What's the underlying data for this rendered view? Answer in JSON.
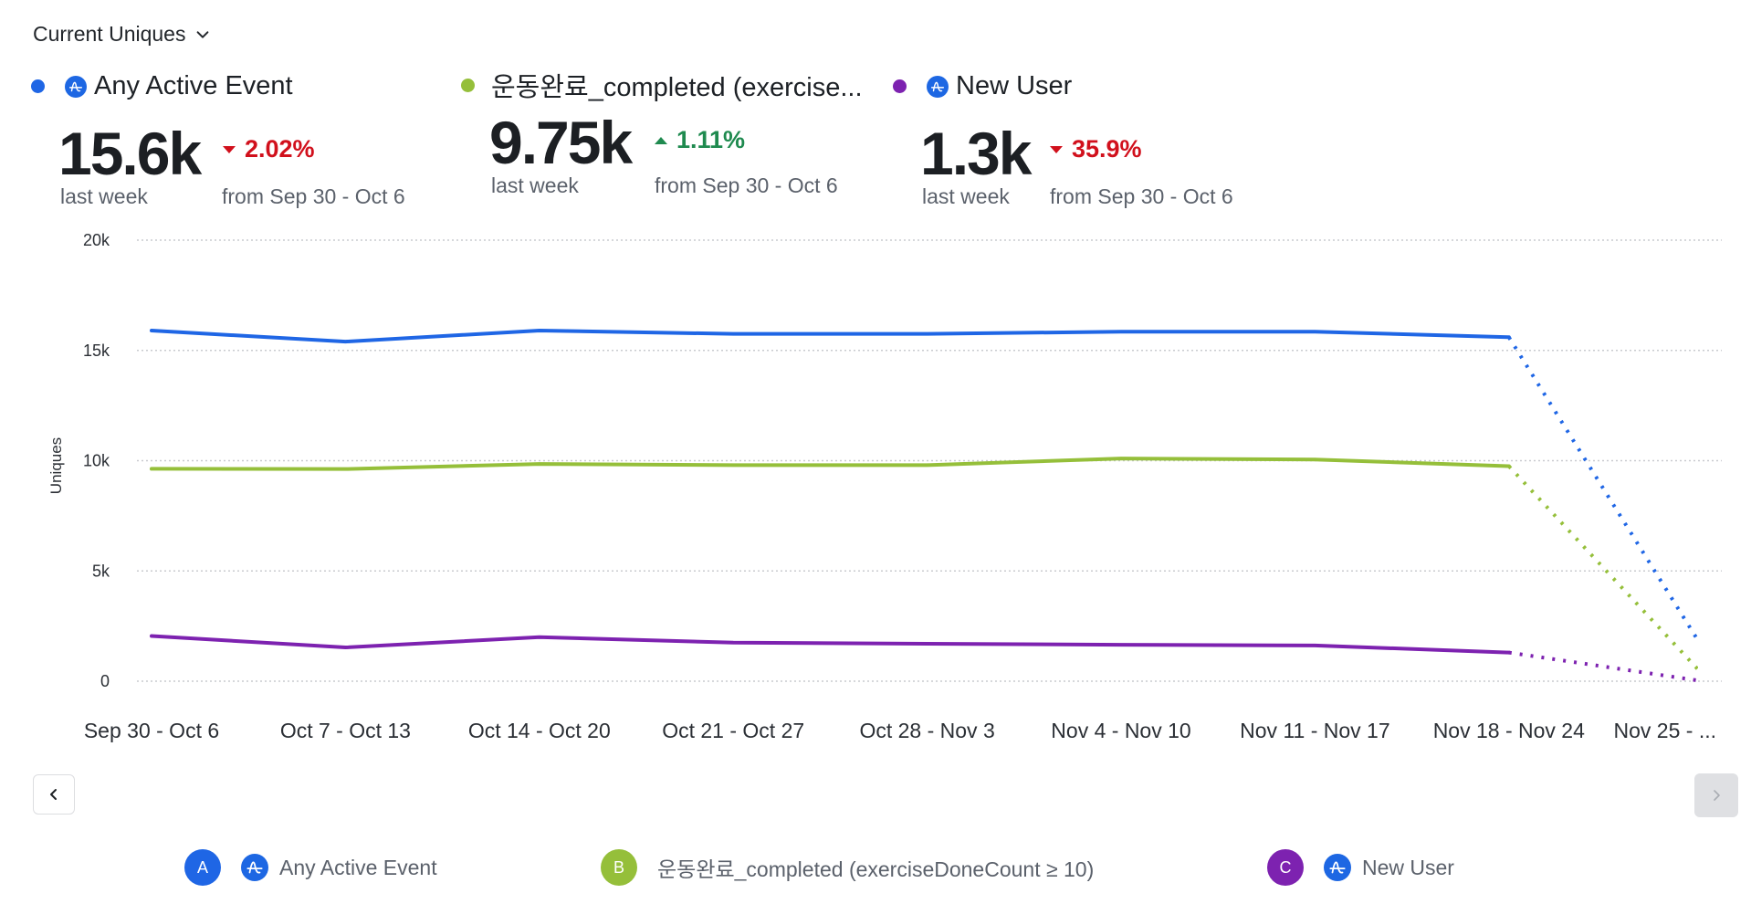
{
  "header": {
    "metric_selector_label": "Current Uniques"
  },
  "metrics": [
    {
      "key": "A",
      "color": "#1f66e5",
      "has_amp_icon": true,
      "title": "Any Active Event",
      "value": "15.6k",
      "period_label": "last week",
      "change": "2.02%",
      "direction": "down",
      "compare_label": "from Sep 30 - Oct 6"
    },
    {
      "key": "B",
      "color": "#95bf3a",
      "has_amp_icon": false,
      "title": "운동완료_completed (exercise...",
      "value": "9.75k",
      "period_label": "last week",
      "change": "1.11%",
      "direction": "up",
      "compare_label": "from Sep 30 - Oct 6"
    },
    {
      "key": "C",
      "color": "#7d22b0",
      "has_amp_icon": true,
      "title": "New User",
      "value": "1.3k",
      "period_label": "last week",
      "change": "35.9%",
      "direction": "down",
      "compare_label": "from Sep 30 - Oct 6"
    }
  ],
  "chart_data": {
    "type": "line",
    "title": "",
    "xlabel": "",
    "ylabel": "Uniques",
    "ylim": [
      0,
      20000
    ],
    "yticks": [
      0,
      5000,
      10000,
      15000,
      20000
    ],
    "ytick_labels": [
      "0",
      "5k",
      "10k",
      "15k",
      "20k"
    ],
    "grid": true,
    "categories": [
      "Sep 30 - Oct 6",
      "Oct 7 - Oct 13",
      "Oct 14 - Oct 20",
      "Oct 21 - Oct 27",
      "Oct 28 - Nov 3",
      "Nov 4 - Nov 10",
      "Nov 11 - Nov 17",
      "Nov 18 - Nov 24",
      "Nov 25 - ..."
    ],
    "incomplete_from_index": 7,
    "series": [
      {
        "name": "Any Active Event",
        "color": "#1f66e5",
        "values": [
          15900,
          15400,
          15900,
          15750,
          15750,
          15850,
          15850,
          15600,
          1500
        ]
      },
      {
        "name": "운동완료_completed (exerciseDoneCount ≥ 10)",
        "color": "#95bf3a",
        "values": [
          9630,
          9620,
          9850,
          9800,
          9800,
          10100,
          10050,
          9750,
          300
        ]
      },
      {
        "name": "New User",
        "color": "#7d22b0",
        "values": [
          2050,
          1530,
          2000,
          1750,
          1700,
          1650,
          1620,
          1300,
          0
        ]
      }
    ]
  },
  "nav": {
    "prev_label": "previous",
    "next_label": "next"
  },
  "legend": [
    {
      "badge": "A",
      "color": "#1f66e5",
      "has_amp_icon": true,
      "label": "Any Active Event"
    },
    {
      "badge": "B",
      "color": "#95bf3a",
      "has_amp_icon": false,
      "label": "운동완료_completed (exerciseDoneCount ≥ 10)"
    },
    {
      "badge": "C",
      "color": "#7d22b0",
      "has_amp_icon": true,
      "label": "New User"
    }
  ]
}
